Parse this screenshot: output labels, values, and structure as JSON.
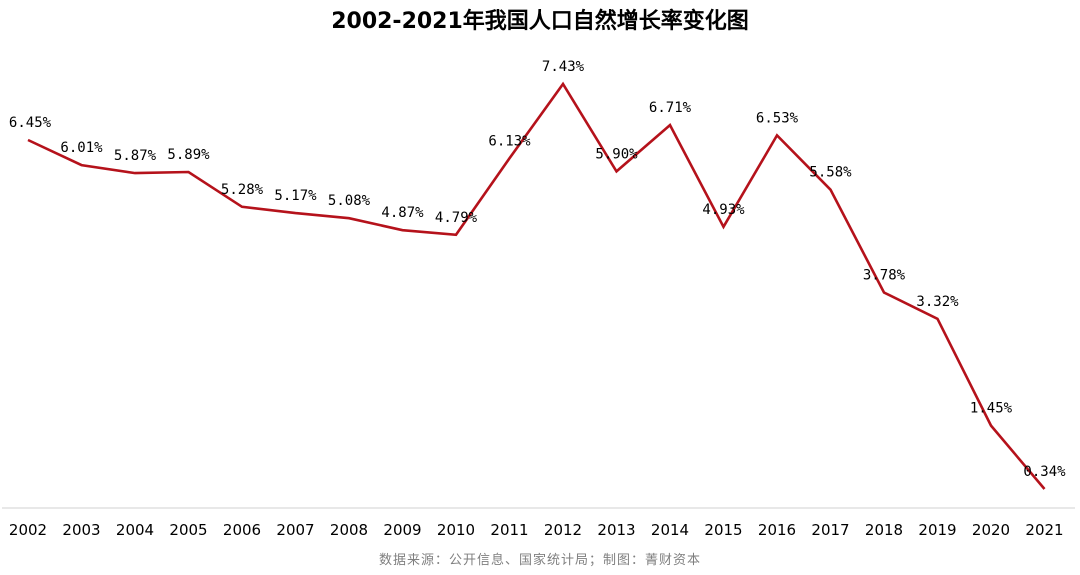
{
  "chart_data": {
    "type": "line",
    "title": "2002-2021年我国人口自然增长率变化图",
    "xlabel": "",
    "ylabel": "",
    "grid": false,
    "legend": "none",
    "categories": [
      "2002",
      "2003",
      "2004",
      "2005",
      "2006",
      "2007",
      "2008",
      "2009",
      "2010",
      "2011",
      "2012",
      "2013",
      "2014",
      "2015",
      "2016",
      "2017",
      "2018",
      "2019",
      "2020",
      "2021"
    ],
    "series": [
      {
        "values": [
          6.45,
          6.01,
          5.87,
          5.89,
          5.28,
          5.17,
          5.08,
          4.87,
          4.79,
          6.13,
          7.43,
          5.9,
          6.71,
          4.93,
          6.53,
          5.58,
          3.78,
          3.32,
          1.45,
          0.34
        ],
        "labels": [
          "6.45%",
          "6.01%",
          "5.87%",
          "5.89%",
          "5.28%",
          "5.17%",
          "5.08%",
          "4.87%",
          "4.79%",
          "6.13%",
          "7.43%",
          "5.90%",
          "6.71%",
          "4.93%",
          "6.53%",
          "5.58%",
          "3.78%",
          "3.32%",
          "1.45%",
          "0.34%"
        ],
        "color": "#b5121b"
      }
    ],
    "axis_line_color": "#d9d9d9"
  },
  "source_note": "数据来源：公开信息、国家统计局；制图：菁财资本"
}
